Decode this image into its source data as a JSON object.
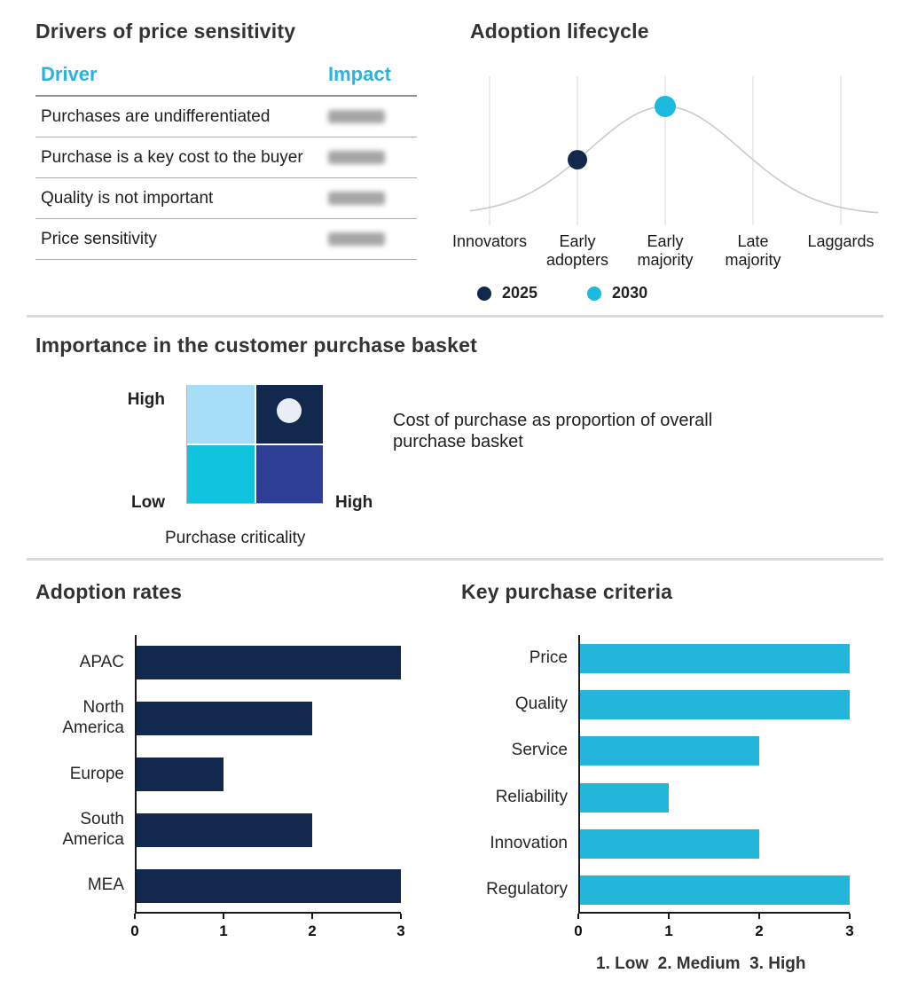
{
  "sections": {
    "drivers": {
      "title": "Drivers of price sensitivity",
      "columns": [
        "Driver",
        "Impact"
      ],
      "rows": [
        {
          "driver": "Purchases are undifferentiated",
          "impact_redacted": true
        },
        {
          "driver": "Purchase is a key cost to the buyer",
          "impact_redacted": true
        },
        {
          "driver": "Quality is not important",
          "impact_redacted": true
        },
        {
          "driver": "Price sensitivity",
          "impact_redacted": true
        }
      ]
    }
  },
  "chart_data": [
    {
      "id": "adoption-lifecycle",
      "type": "line",
      "title": "Adoption lifecycle",
      "categories": [
        "Innovators",
        "Early adopters",
        "Early majority",
        "Late majority",
        "Laggards"
      ],
      "curve": "bell curve peaking at Early majority",
      "grid": true,
      "markers": [
        {
          "label": "2025",
          "category": "Early adopters",
          "color": "#12294D"
        },
        {
          "label": "2030",
          "category": "Early majority",
          "color": "#1CBBDD"
        }
      ],
      "legend": [
        "2025",
        "2030"
      ],
      "legend_position": "bottom"
    },
    {
      "id": "purchase-basket-matrix",
      "type": "heatmap",
      "title": "Importance in the customer purchase basket",
      "x_axis_label": "Purchase criticality",
      "y_labels": {
        "top": "High",
        "bottom": "Low"
      },
      "x_high_label": "High",
      "quadrants": [
        {
          "position": "top-left",
          "color": "#A6DDF8",
          "marker": false
        },
        {
          "position": "top-right",
          "color": "#12294D",
          "marker": true
        },
        {
          "position": "bottom-left",
          "color": "#10C3DF",
          "marker": false
        },
        {
          "position": "bottom-right",
          "color": "#2E3E96",
          "marker": false
        }
      ],
      "annotation": "Cost of purchase as proportion of overall purchase basket"
    },
    {
      "id": "adoption-rates",
      "type": "bar",
      "orientation": "horizontal",
      "title": "Adoption rates",
      "categories": [
        "APAC",
        "North America",
        "Europe",
        "South America",
        "MEA"
      ],
      "values": [
        3,
        2,
        1,
        2,
        3
      ],
      "xlim": [
        0,
        3
      ],
      "ticks": [
        0,
        1,
        2,
        3
      ],
      "color": "#12294D"
    },
    {
      "id": "key-purchase-criteria",
      "type": "bar",
      "orientation": "horizontal",
      "title": "Key purchase criteria",
      "categories": [
        "Price",
        "Quality",
        "Service",
        "Reliability",
        "Innovation",
        "Regulatory"
      ],
      "values": [
        3,
        3,
        2,
        1,
        2,
        3
      ],
      "xlim": [
        0,
        3
      ],
      "ticks": [
        0,
        1,
        2,
        3
      ],
      "color": "#22B7DA",
      "footnote": "1. Low  2. Medium  3. High"
    }
  ],
  "colors": {
    "navy": "#12294D",
    "cyan": "#22B7DA",
    "header_cyan": "#29B2E2",
    "light_blue": "#A6DDF8",
    "indigo": "#2E3E96",
    "bright_cyan": "#10C3DF",
    "curve_gray": "#CACACA",
    "grid_gray": "#D8D8D8",
    "marker_dot_fill": "#E9EEF6"
  }
}
